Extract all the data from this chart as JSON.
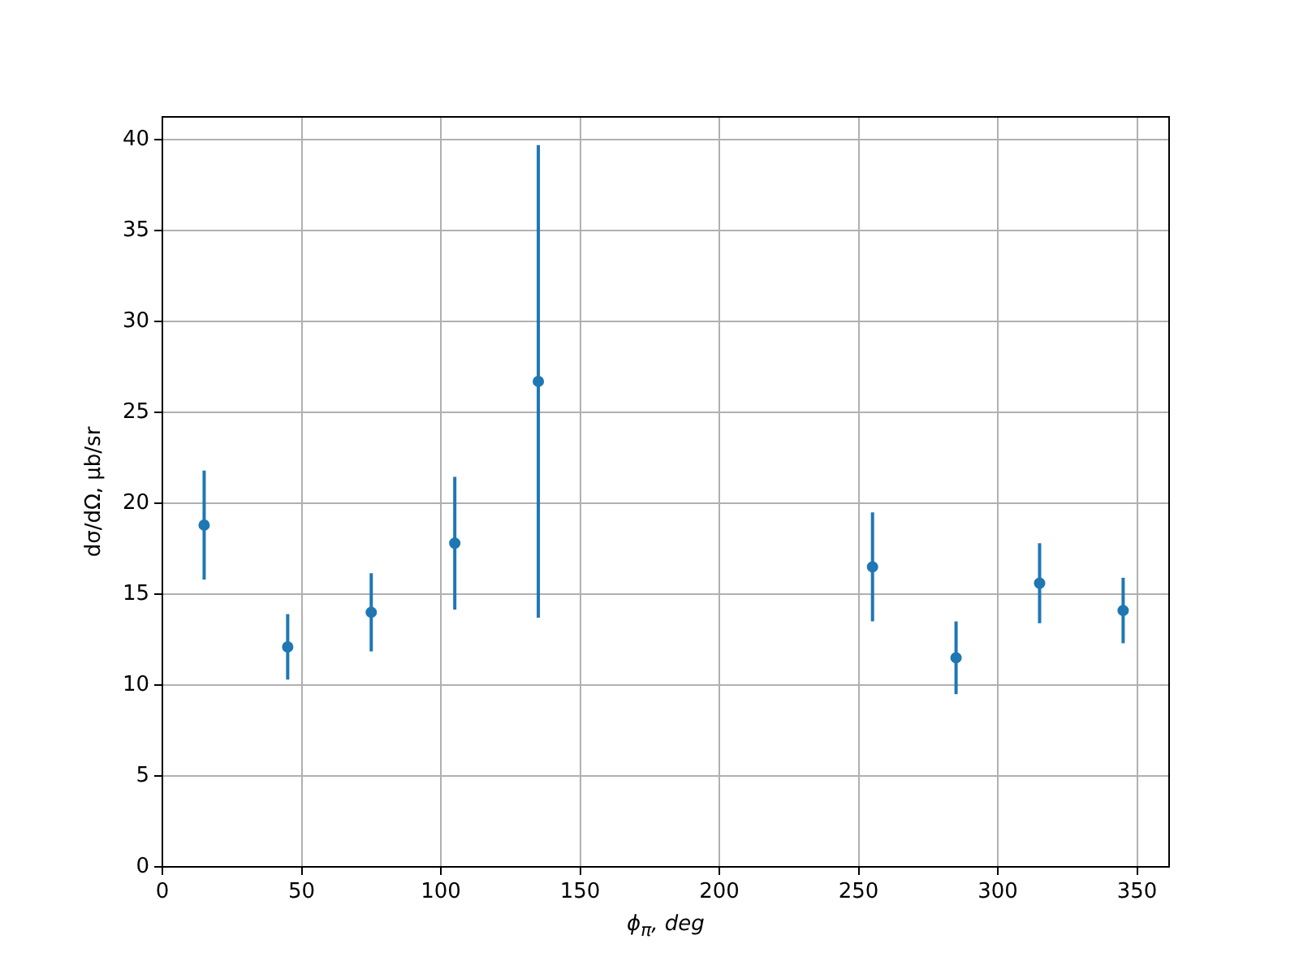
{
  "chart_data": {
    "type": "scatter",
    "xlabel": "ϕ$_{π}$, deg",
    "ylabel": "dσ/dΩ, μb/sr",
    "x": [
      15,
      45,
      75,
      105,
      135,
      255,
      285,
      315,
      345
    ],
    "series": [
      {
        "color": "#1f77b4",
        "values": [
          18.8,
          12.1,
          14.0,
          17.8,
          26.7,
          16.5,
          11.5,
          15.6,
          14.1
        ],
        "errors": [
          3.0,
          1.8,
          2.15,
          3.65,
          13.0,
          3.0,
          2.0,
          2.2,
          1.8
        ]
      }
    ],
    "xlim": [
      0,
      361.5
    ],
    "xticks": [
      0,
      50,
      100,
      150,
      200,
      250,
      300,
      350
    ],
    "ylim": [
      0,
      41.25
    ],
    "yticks": [
      0,
      5,
      10,
      15,
      20,
      25,
      30,
      35,
      40
    ],
    "grid": true,
    "marker": "circle",
    "legend": false
  }
}
